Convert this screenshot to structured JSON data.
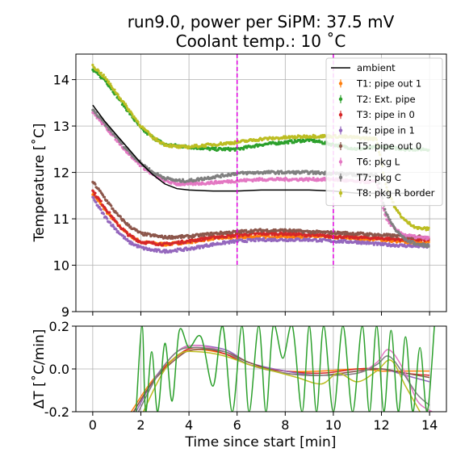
{
  "chart_data": [
    {
      "type": "scatter",
      "title": "run9.0, power per SiPM: 37.5 mV",
      "subtitle": "Coolant temp.: 10 ˚C",
      "xlabel": "",
      "ylabel": "Temperature [˚C]",
      "xlim": [
        -0.7,
        14.7
      ],
      "ylim": [
        9,
        14.55
      ],
      "yticks": [
        9,
        10,
        11,
        12,
        13,
        14
      ],
      "grid": true,
      "legend": "top-right",
      "vlines": [
        {
          "x": 6,
          "color": "#e000e0",
          "range": [
            10.0,
            14.55
          ]
        },
        {
          "x": 10,
          "color": "#e000e0",
          "range": [
            9.95,
            14.55
          ]
        }
      ],
      "ambient": {
        "name": "ambient",
        "color": "#000000",
        "x": [
          0,
          0.5,
          1,
          1.5,
          2,
          2.5,
          3,
          3.5,
          4,
          5,
          6,
          7,
          8,
          9,
          10,
          11,
          12,
          12.5,
          13,
          13.5,
          14
        ],
        "y": [
          13.45,
          13.1,
          12.8,
          12.5,
          12.2,
          11.95,
          11.75,
          11.65,
          11.62,
          11.6,
          11.6,
          11.62,
          11.62,
          11.62,
          11.6,
          11.55,
          11.55,
          11.55,
          11.55,
          11.55,
          11.55
        ]
      },
      "series": [
        {
          "name": "T1: pipe out 1",
          "color": "#ff7f0e",
          "x": [
            0,
            0.5,
            1,
            1.5,
            2,
            3,
            4,
            5,
            6,
            7,
            8,
            9,
            10,
            11,
            12,
            13,
            14
          ],
          "y": [
            11.55,
            11.2,
            10.9,
            10.65,
            10.5,
            10.45,
            10.5,
            10.58,
            10.6,
            10.62,
            10.62,
            10.62,
            10.6,
            10.58,
            10.55,
            10.5,
            10.5
          ]
        },
        {
          "name": "T2: Ext. pipe",
          "color": "#2ca02c",
          "x": [
            0,
            0.5,
            1,
            1.5,
            2,
            2.5,
            3,
            4,
            5,
            6,
            7,
            8,
            9,
            10,
            11,
            12,
            13,
            14
          ],
          "y": [
            14.2,
            14.0,
            13.65,
            13.3,
            12.95,
            12.75,
            12.6,
            12.55,
            12.5,
            12.5,
            12.6,
            12.65,
            12.7,
            12.6,
            12.5,
            12.55,
            12.5,
            12.5
          ]
        },
        {
          "name": "T3: pipe in 0",
          "color": "#d62728",
          "x": [
            0,
            0.5,
            1,
            1.5,
            2,
            3,
            4,
            5,
            6,
            7,
            8,
            9,
            10,
            11,
            12,
            13,
            14
          ],
          "y": [
            11.6,
            11.25,
            10.9,
            10.65,
            10.5,
            10.45,
            10.52,
            10.6,
            10.65,
            10.68,
            10.68,
            10.65,
            10.62,
            10.6,
            10.58,
            10.55,
            10.55
          ]
        },
        {
          "name": "T4: pipe in 1",
          "color": "#9467bd",
          "x": [
            0,
            0.5,
            1,
            1.5,
            2,
            2.5,
            3,
            4,
            5,
            6,
            7,
            8,
            9,
            10,
            11,
            12,
            13,
            14
          ],
          "y": [
            11.45,
            11.05,
            10.75,
            10.5,
            10.38,
            10.32,
            10.3,
            10.35,
            10.45,
            10.52,
            10.55,
            10.55,
            10.55,
            10.52,
            10.5,
            10.45,
            10.42,
            10.4
          ]
        },
        {
          "name": "T5: pipe out 0",
          "color": "#8c564b",
          "x": [
            0,
            0.5,
            1,
            1.5,
            2,
            3,
            4,
            5,
            6,
            7,
            8,
            9,
            10,
            11,
            12,
            13,
            14
          ],
          "y": [
            11.8,
            11.45,
            11.1,
            10.85,
            10.68,
            10.6,
            10.62,
            10.68,
            10.72,
            10.75,
            10.75,
            10.72,
            10.7,
            10.68,
            10.65,
            10.62,
            10.6
          ]
        },
        {
          "name": "T6: pkg L",
          "color": "#e377c2",
          "x": [
            0,
            0.5,
            1,
            1.5,
            2,
            2.5,
            3,
            3.5,
            4,
            5,
            6,
            7,
            8,
            9,
            10,
            11,
            11.8,
            12.2,
            12.6,
            13,
            13.5,
            14
          ],
          "y": [
            13.3,
            13.0,
            12.7,
            12.4,
            12.15,
            11.95,
            11.82,
            11.75,
            11.75,
            11.78,
            11.82,
            11.85,
            11.85,
            11.85,
            11.85,
            11.8,
            11.8,
            11.0,
            10.75,
            10.65,
            10.6,
            10.58
          ]
        },
        {
          "name": "T7: pkg C",
          "color": "#7f7f7f",
          "x": [
            0,
            0.5,
            1,
            1.5,
            2,
            2.5,
            3,
            3.5,
            4,
            5,
            6,
            7,
            8,
            9,
            10,
            11,
            11.8,
            12.2,
            12.6,
            13,
            13.5,
            14
          ],
          "y": [
            13.35,
            13.05,
            12.75,
            12.45,
            12.2,
            12.0,
            11.88,
            11.82,
            11.82,
            11.9,
            11.98,
            12.0,
            12.0,
            12.0,
            11.98,
            11.95,
            11.95,
            11.1,
            10.75,
            10.55,
            10.45,
            10.42
          ]
        },
        {
          "name": "T8: pkg R border",
          "color": "#bcbd22",
          "x": [
            0,
            0.5,
            1,
            1.5,
            2,
            2.5,
            3,
            3.5,
            4,
            5,
            6,
            7,
            8,
            9,
            10,
            11,
            11.8,
            12.2,
            12.6,
            13,
            13.5,
            14
          ],
          "y": [
            14.3,
            14.05,
            13.7,
            13.35,
            13.0,
            12.75,
            12.6,
            12.55,
            12.55,
            12.6,
            12.65,
            12.72,
            12.75,
            12.78,
            12.78,
            12.75,
            12.72,
            11.7,
            11.2,
            10.95,
            10.8,
            10.78
          ]
        }
      ]
    },
    {
      "type": "line",
      "xlabel": "Time since start [min]",
      "ylabel": "ΔT [˚C/min]",
      "xlim": [
        -0.7,
        14.7
      ],
      "ylim": [
        -0.2,
        0.2
      ],
      "xticks": [
        0,
        2,
        4,
        6,
        8,
        10,
        12,
        14
      ],
      "yticks": [
        -0.2,
        0.0,
        0.2
      ],
      "grid": true,
      "series": [
        {
          "color": "#ff7f0e",
          "x": [
            1.6,
            2.5,
            3.5,
            4.3,
            5.5,
            6.5,
            8,
            9.5,
            11,
            12,
            13,
            14
          ],
          "y": [
            -0.2,
            -0.05,
            0.06,
            0.09,
            0.07,
            0.02,
            -0.01,
            -0.01,
            0.0,
            -0.01,
            -0.01,
            -0.01
          ]
        },
        {
          "color": "#d62728",
          "x": [
            1.7,
            2.5,
            3.5,
            4.3,
            5.5,
            6.5,
            8,
            9.5,
            11,
            12,
            13,
            14
          ],
          "y": [
            -0.2,
            -0.06,
            0.06,
            0.1,
            0.07,
            0.02,
            -0.01,
            -0.02,
            0.0,
            0.0,
            -0.02,
            -0.03
          ]
        },
        {
          "color": "#9467bd",
          "x": [
            1.8,
            2.6,
            3.5,
            4.2,
            5.5,
            6.5,
            8,
            9.5,
            11,
            12,
            13,
            14
          ],
          "y": [
            -0.2,
            -0.04,
            0.08,
            0.11,
            0.09,
            0.03,
            -0.01,
            -0.03,
            -0.01,
            0.0,
            -0.03,
            -0.06
          ]
        },
        {
          "color": "#8c564b",
          "x": [
            1.7,
            2.5,
            3.5,
            4.2,
            5.5,
            6.5,
            8,
            9.5,
            11,
            12,
            13,
            14
          ],
          "y": [
            -0.2,
            -0.06,
            0.05,
            0.09,
            0.08,
            0.03,
            -0.02,
            -0.03,
            -0.01,
            0.0,
            -0.02,
            -0.04
          ]
        },
        {
          "color": "#e377c2",
          "x": [
            1.9,
            2.7,
            3.5,
            4.3,
            5.5,
            6.5,
            8,
            9.5,
            11,
            11.8,
            12.3,
            12.9,
            13.5,
            14.1
          ],
          "y": [
            -0.2,
            -0.03,
            0.08,
            0.11,
            0.08,
            0.02,
            -0.02,
            -0.03,
            -0.02,
            0.03,
            0.09,
            0.0,
            -0.15,
            -0.2
          ]
        },
        {
          "color": "#7f7f7f",
          "x": [
            1.9,
            2.7,
            3.5,
            4.3,
            5.5,
            6.5,
            8,
            9.5,
            11,
            11.8,
            12.3,
            12.9,
            13.5,
            14.0
          ],
          "y": [
            -0.2,
            -0.03,
            0.08,
            0.1,
            0.08,
            0.02,
            -0.02,
            -0.03,
            -0.02,
            0.02,
            0.06,
            -0.02,
            -0.12,
            -0.17
          ]
        },
        {
          "color": "#bcbd22",
          "x": [
            2.1,
            2.9,
            3.6,
            4.4,
            5.5,
            6.5,
            7.5,
            8.5,
            9.5,
            10.2,
            11,
            11.8,
            12.4,
            13.0,
            13.6
          ],
          "y": [
            -0.2,
            -0.02,
            0.07,
            0.08,
            0.06,
            0.02,
            -0.01,
            -0.04,
            -0.07,
            -0.02,
            -0.06,
            -0.01,
            0.04,
            -0.08,
            -0.2
          ]
        },
        {
          "color": "#2ca02c",
          "x": [
            1.8,
            2.05,
            2.2,
            2.45,
            2.7,
            3.0,
            3.3,
            3.6,
            4.0,
            4.5,
            5.0,
            5.4,
            5.8,
            6.2,
            6.5,
            6.9,
            7.2,
            7.5,
            7.9,
            8.3,
            8.7,
            9.0,
            9.3,
            9.6,
            10.0,
            10.4,
            10.8,
            11.2,
            11.5,
            11.8,
            12.1,
            12.4,
            12.7,
            13.0,
            13.3,
            13.6,
            13.9,
            14.2
          ],
          "y": [
            -0.2,
            0.2,
            -0.2,
            0.08,
            -0.2,
            0.12,
            -0.15,
            0.18,
            0.1,
            0.15,
            -0.08,
            0.2,
            -0.2,
            0.2,
            -0.2,
            0.2,
            -0.2,
            0.2,
            0.05,
            0.2,
            -0.2,
            0.2,
            -0.2,
            0.2,
            -0.2,
            0.2,
            -0.2,
            0.2,
            -0.2,
            0.2,
            -0.2,
            0.18,
            -0.2,
            0.15,
            -0.2,
            0.1,
            -0.2,
            0.2
          ]
        }
      ]
    }
  ]
}
